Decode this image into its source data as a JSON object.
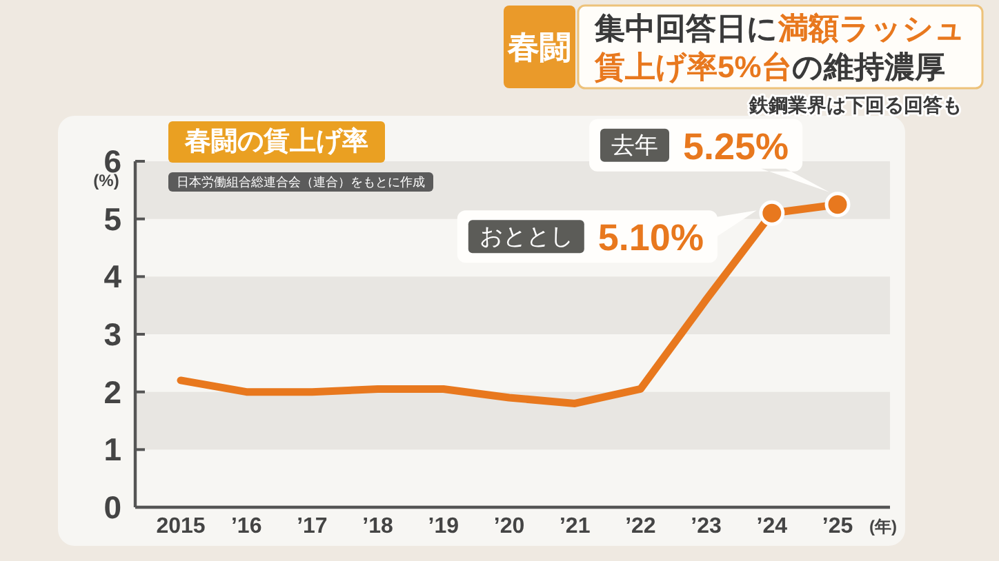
{
  "chart_data": {
    "type": "line",
    "title": "春闘の賃上げ率",
    "subtitle": "鉄鋼業界は下回る回答も",
    "xlabel": "(年)",
    "ylabel": "(%)",
    "categories": [
      "2015",
      "’16",
      "’17",
      "’18",
      "’19",
      "’20",
      "’21",
      "’22",
      "’23",
      "’24",
      "’25"
    ],
    "series": [
      {
        "type": "line",
        "color": "#e8781e",
        "values": [
          2.2,
          2.0,
          2.0,
          2.05,
          2.05,
          1.9,
          1.8,
          2.05,
          3.6,
          5.1,
          5.25
        ]
      },
      {
        "type": "scatter",
        "color": "#e8781e",
        "x": [
          "’24",
          "’25"
        ],
        "values": [
          5.1,
          5.25
        ]
      }
    ],
    "ylim": [
      0,
      6
    ],
    "yticks": [
      0,
      1,
      2,
      3,
      4,
      5,
      6
    ],
    "line_style": "solid",
    "bands": [
      {
        "axis": "y",
        "from": 1,
        "to": 2,
        "color": "#e8e6e2"
      },
      {
        "axis": "y",
        "from": 3,
        "to": 4,
        "color": "#e8e6e2"
      },
      {
        "axis": "y",
        "from": 5,
        "to": 6,
        "color": "#e8e6e2"
      }
    ],
    "annotations": [
      "春闘",
      "集中回答日に",
      "満額ラッシュ",
      "賃上げ率5%台",
      "の維持濃厚",
      "日本労働組合総連合会（連合）をもとに作成",
      "おととし",
      "去年",
      {
        "text": "5.10%",
        "x": "’24",
        "y": 5.1
      },
      {
        "text": "5.25%",
        "x": "’25",
        "y": 5.25
      }
    ]
  }
}
